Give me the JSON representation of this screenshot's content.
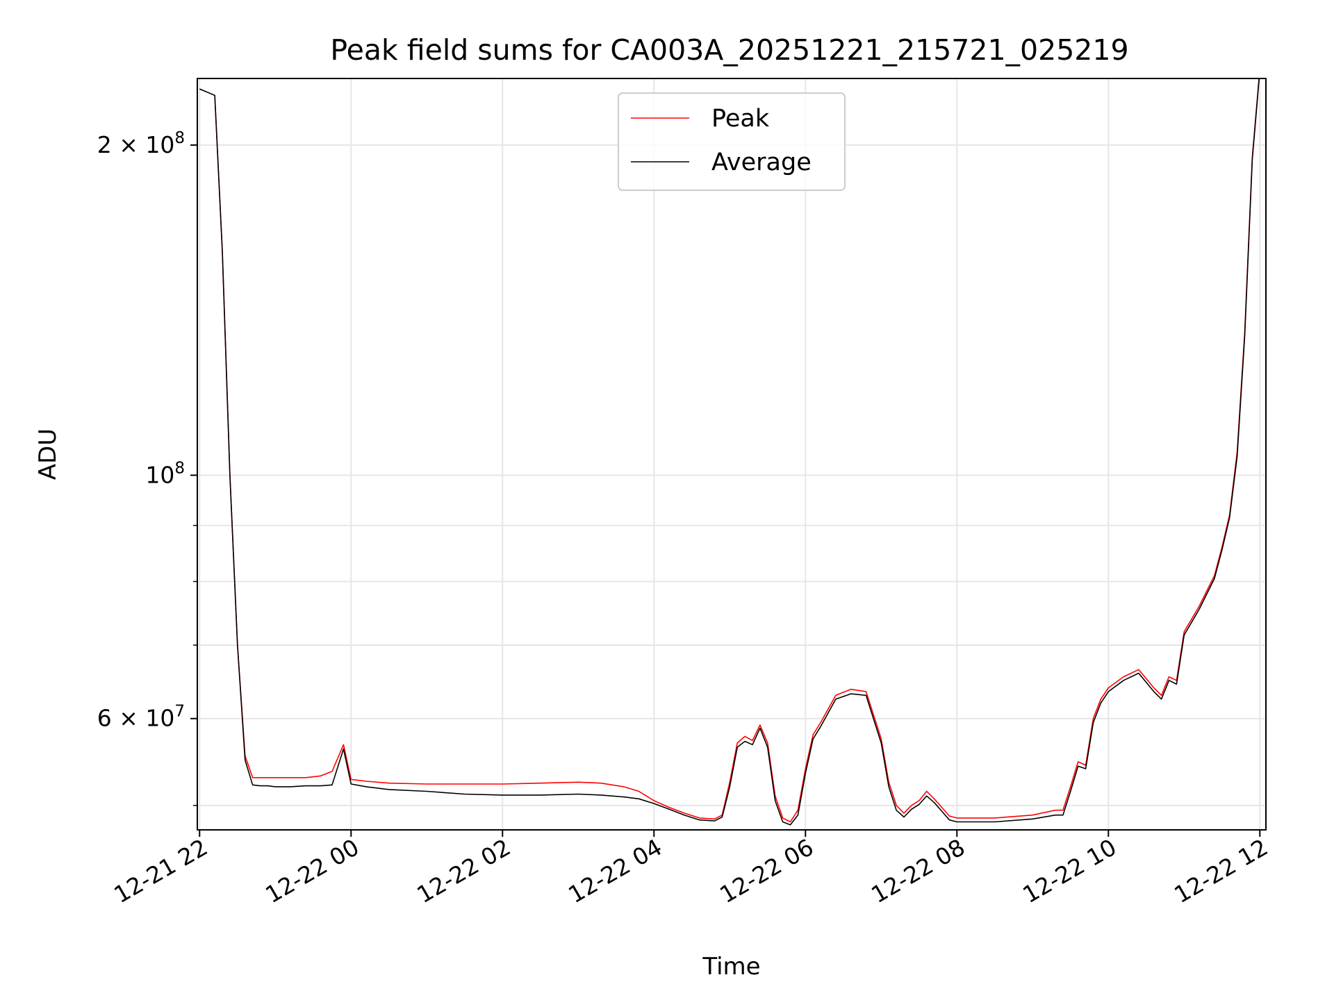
{
  "chart_data": {
    "type": "line",
    "title": "Peak field sums for CA003A_20251221_215721_025219",
    "xlabel": "Time",
    "ylabel": "ADU",
    "yscale": "log",
    "ylim": [
      47500000,
      230000000
    ],
    "xlim_hours": [
      -2.03,
      12.08
    ],
    "grid": true,
    "legend_position": "upper-center",
    "x_ticks": [
      {
        "hour": -2,
        "label": "12-21 22"
      },
      {
        "hour": 0,
        "label": "12-22 00"
      },
      {
        "hour": 2,
        "label": "12-22 02"
      },
      {
        "hour": 4,
        "label": "12-22 04"
      },
      {
        "hour": 6,
        "label": "12-22 06"
      },
      {
        "hour": 8,
        "label": "12-22 08"
      },
      {
        "hour": 10,
        "label": "12-22 10"
      },
      {
        "hour": 12,
        "label": "12-22 12"
      }
    ],
    "y_ticks": [
      {
        "value": 60000000,
        "mantissa": "6",
        "exponent": "7"
      },
      {
        "value": 100000000,
        "mantissa": "",
        "exponent": "8"
      },
      {
        "value": 200000000,
        "mantissa": "2",
        "exponent": "8"
      }
    ],
    "y_minor_ticks": [
      50000000,
      70000000,
      80000000,
      90000000
    ],
    "times_symbol": "×",
    "tick_base": "10",
    "series": [
      {
        "name": "Peak",
        "color": "#ff0000",
        "hours": [
          -2.0,
          -1.9,
          -1.8,
          -1.7,
          -1.6,
          -1.5,
          -1.4,
          -1.3,
          -1.2,
          -1.1,
          -1.0,
          -0.8,
          -0.6,
          -0.4,
          -0.25,
          -0.1,
          0.0,
          0.2,
          0.5,
          1.0,
          1.5,
          2.0,
          2.5,
          3.0,
          3.3,
          3.6,
          3.8,
          4.0,
          4.2,
          4.4,
          4.6,
          4.8,
          4.9,
          5.0,
          5.1,
          5.2,
          5.3,
          5.4,
          5.5,
          5.6,
          5.7,
          5.8,
          5.9,
          6.0,
          6.1,
          6.2,
          6.4,
          6.6,
          6.8,
          7.0,
          7.1,
          7.2,
          7.3,
          7.4,
          7.5,
          7.6,
          7.7,
          7.8,
          7.9,
          8.0,
          8.5,
          9.0,
          9.3,
          9.4,
          9.5,
          9.6,
          9.7,
          9.8,
          9.9,
          10.0,
          10.2,
          10.4,
          10.6,
          10.7,
          10.8,
          10.9,
          11.0,
          11.2,
          11.4,
          11.5,
          11.6,
          11.7,
          11.8,
          11.9,
          12.0
        ],
        "values": [
          225000000,
          223500000,
          222000000,
          160000000,
          100000000,
          70000000,
          55500000,
          53000000,
          53000000,
          53000000,
          53000000,
          53000000,
          53000000,
          53200000,
          53700000,
          56800000,
          52800000,
          52600000,
          52400000,
          52300000,
          52300000,
          52300000,
          52400000,
          52500000,
          52400000,
          52000000,
          51500000,
          50500000,
          49800000,
          49200000,
          48700000,
          48600000,
          49000000,
          52500000,
          57000000,
          57800000,
          57300000,
          59200000,
          57000000,
          51000000,
          48700000,
          48300000,
          49500000,
          54000000,
          58000000,
          59500000,
          63000000,
          63800000,
          63500000,
          57500000,
          52500000,
          50000000,
          49200000,
          50000000,
          50500000,
          51500000,
          50700000,
          49800000,
          48900000,
          48700000,
          48700000,
          49000000,
          49500000,
          49500000,
          52000000,
          54800000,
          54400000,
          60000000,
          62500000,
          64000000,
          65500000,
          66500000,
          64000000,
          63000000,
          65500000,
          65000000,
          72000000,
          76000000,
          81000000,
          86000000,
          92000000,
          105000000,
          135000000,
          195000000,
          235000000
        ]
      },
      {
        "name": "Average",
        "color": "#000000",
        "hours": [
          -2.0,
          -1.9,
          -1.8,
          -1.7,
          -1.6,
          -1.5,
          -1.4,
          -1.3,
          -1.2,
          -1.1,
          -1.0,
          -0.8,
          -0.6,
          -0.4,
          -0.25,
          -0.1,
          0.0,
          0.2,
          0.5,
          1.0,
          1.5,
          2.0,
          2.5,
          3.0,
          3.3,
          3.6,
          3.8,
          4.0,
          4.2,
          4.4,
          4.6,
          4.8,
          4.9,
          5.0,
          5.1,
          5.2,
          5.3,
          5.4,
          5.5,
          5.6,
          5.7,
          5.8,
          5.9,
          6.0,
          6.1,
          6.2,
          6.4,
          6.6,
          6.8,
          7.0,
          7.1,
          7.2,
          7.3,
          7.4,
          7.5,
          7.6,
          7.7,
          7.8,
          7.9,
          8.0,
          8.5,
          9.0,
          9.3,
          9.4,
          9.5,
          9.6,
          9.7,
          9.8,
          9.9,
          10.0,
          10.2,
          10.4,
          10.6,
          10.7,
          10.8,
          10.9,
          11.0,
          11.2,
          11.4,
          11.5,
          11.6,
          11.7,
          11.8,
          11.9,
          12.0
        ],
        "values": [
          225000000,
          223500000,
          222000000,
          160000000,
          100000000,
          70000000,
          55000000,
          52200000,
          52100000,
          52100000,
          52000000,
          52000000,
          52100000,
          52100000,
          52200000,
          56300000,
          52300000,
          52000000,
          51700000,
          51500000,
          51200000,
          51100000,
          51100000,
          51200000,
          51100000,
          50900000,
          50700000,
          50200000,
          49600000,
          49000000,
          48500000,
          48400000,
          48800000,
          52000000,
          56500000,
          57200000,
          56800000,
          58800000,
          56500000,
          50500000,
          48300000,
          48000000,
          49000000,
          53500000,
          57500000,
          59000000,
          62500000,
          63200000,
          63000000,
          57000000,
          52000000,
          49500000,
          48800000,
          49600000,
          50100000,
          51000000,
          50300000,
          49400000,
          48500000,
          48300000,
          48300000,
          48600000,
          49000000,
          49000000,
          51500000,
          54300000,
          54000000,
          59500000,
          62000000,
          63500000,
          65000000,
          66000000,
          63500000,
          62500000,
          65000000,
          64500000,
          71500000,
          75500000,
          80500000,
          85500000,
          91500000,
          104000000,
          134000000,
          194000000,
          234000000
        ]
      }
    ]
  }
}
